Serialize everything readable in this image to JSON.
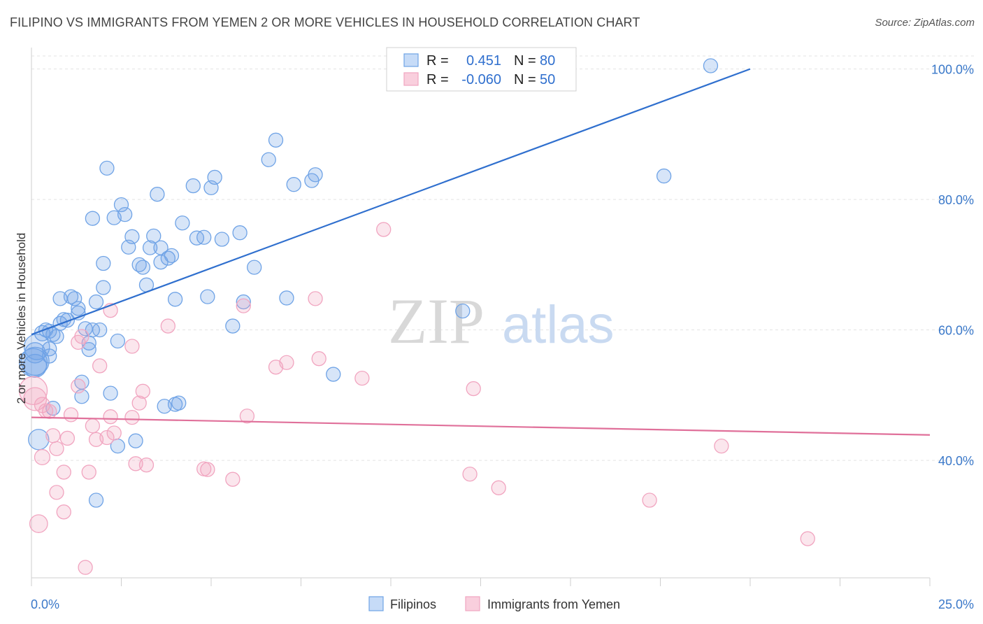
{
  "title": "FILIPINO VS IMMIGRANTS FROM YEMEN 2 OR MORE VEHICLES IN HOUSEHOLD CORRELATION CHART",
  "source": "Source: ZipAtlas.com",
  "watermark": {
    "zip": "ZIP",
    "atlas": "atlas"
  },
  "chart_data": {
    "type": "scatter",
    "ylabel": "2 or more Vehicles in Household",
    "xlim": [
      0,
      25
    ],
    "ylim": [
      22,
      102
    ],
    "x_tick_labels": [
      "0.0%",
      "25.0%"
    ],
    "y_ticks": [
      40,
      60,
      80,
      100
    ],
    "y_tick_labels": [
      "40.0%",
      "60.0%",
      "80.0%",
      "100.0%"
    ],
    "grid": true,
    "legend_position": "top-center",
    "stats": [
      {
        "r_label": "R =",
        "r": "0.451",
        "n_label": "N =",
        "n": "80"
      },
      {
        "r_label": "R =",
        "r": "-0.060",
        "n_label": "N =",
        "n": "50"
      }
    ],
    "series": [
      {
        "name": "Filipinos",
        "color": "#6fa3e6",
        "line_color": "#2f6fce",
        "trend": {
          "x": [
            0,
            20
          ],
          "y": [
            59.3,
            100
          ]
        },
        "points": [
          [
            0.1,
            55.2
          ],
          [
            0.1,
            54.5
          ],
          [
            0.1,
            56.5
          ],
          [
            0.2,
            43.2
          ],
          [
            0.3,
            59.5
          ],
          [
            0.4,
            60
          ],
          [
            0.5,
            59.8
          ],
          [
            0.5,
            57.1
          ],
          [
            0.5,
            56
          ],
          [
            0.6,
            48
          ],
          [
            0.6,
            59.3
          ],
          [
            0.7,
            59
          ],
          [
            0.8,
            64.8
          ],
          [
            0.8,
            61
          ],
          [
            0.9,
            61.6
          ],
          [
            1.0,
            61.5
          ],
          [
            1.1,
            65.1
          ],
          [
            1.2,
            64.8
          ],
          [
            1.3,
            63.3
          ],
          [
            1.3,
            62.6
          ],
          [
            1.4,
            52
          ],
          [
            1.4,
            49.8
          ],
          [
            1.5,
            60.2
          ],
          [
            1.6,
            57
          ],
          [
            1.6,
            58
          ],
          [
            1.7,
            60
          ],
          [
            1.7,
            77.1
          ],
          [
            1.8,
            64.3
          ],
          [
            1.9,
            60
          ],
          [
            2.0,
            70.2
          ],
          [
            2.0,
            66.5
          ],
          [
            2.1,
            84.8
          ],
          [
            2.2,
            50.3
          ],
          [
            2.3,
            77.2
          ],
          [
            2.4,
            42.2
          ],
          [
            2.4,
            58.3
          ],
          [
            2.5,
            79.2
          ],
          [
            2.6,
            77.7
          ],
          [
            2.7,
            72.7
          ],
          [
            2.8,
            74.3
          ],
          [
            2.9,
            43
          ],
          [
            3.0,
            70
          ],
          [
            3.1,
            69.6
          ],
          [
            3.2,
            66.9
          ],
          [
            3.3,
            72.6
          ],
          [
            3.4,
            74.4
          ],
          [
            3.5,
            80.8
          ],
          [
            3.6,
            72.6
          ],
          [
            3.6,
            70.4
          ],
          [
            3.7,
            48.3
          ],
          [
            3.8,
            71
          ],
          [
            3.9,
            71.4
          ],
          [
            4.0,
            48.6
          ],
          [
            4.0,
            64.7
          ],
          [
            4.1,
            48.8
          ],
          [
            4.2,
            76.4
          ],
          [
            4.5,
            82.1
          ],
          [
            4.6,
            74.1
          ],
          [
            4.8,
            74.2
          ],
          [
            4.9,
            65.1
          ],
          [
            5.0,
            81.8
          ],
          [
            5.1,
            83.4
          ],
          [
            5.3,
            73.9
          ],
          [
            5.6,
            60.6
          ],
          [
            5.8,
            74.9
          ],
          [
            5.9,
            64.3
          ],
          [
            6.2,
            69.6
          ],
          [
            6.6,
            86.1
          ],
          [
            6.8,
            89.1
          ],
          [
            7.1,
            64.9
          ],
          [
            7.3,
            82.3
          ],
          [
            7.8,
            82.9
          ],
          [
            7.9,
            83.8
          ],
          [
            8.4,
            53.2
          ],
          [
            12.0,
            62.9
          ],
          [
            17.6,
            83.6
          ],
          [
            18.9,
            100.5
          ],
          [
            1.8,
            33.9
          ],
          [
            0.05,
            55
          ],
          [
            0.15,
            57.4
          ]
        ],
        "sizes": [
          22,
          18,
          16,
          16,
          12,
          11,
          11,
          11,
          11,
          11,
          11,
          11,
          11,
          11,
          11,
          11,
          11,
          11,
          11,
          11,
          11,
          11,
          11,
          11,
          11,
          11,
          11,
          11,
          11,
          11,
          11,
          11,
          11,
          11,
          11,
          11,
          11,
          11,
          11,
          11,
          11,
          11,
          11,
          11,
          11,
          11,
          11,
          11,
          11,
          11,
          11,
          11,
          11,
          11,
          11,
          11,
          11,
          11,
          11,
          11,
          11,
          11,
          11,
          11,
          11,
          11,
          11,
          11,
          11,
          11,
          11,
          11,
          11,
          11,
          11,
          11,
          11,
          11,
          22,
          20
        ]
      },
      {
        "name": "Immigrants from Yemen",
        "color": "#f1a5c0",
        "line_color": "#e0709a",
        "trend": {
          "x": [
            0,
            25
          ],
          "y": [
            46.6,
            43.9
          ]
        },
        "points": [
          [
            0.05,
            50.7
          ],
          [
            0.2,
            30.3
          ],
          [
            0.3,
            48.5
          ],
          [
            0.3,
            40.5
          ],
          [
            0.4,
            47.6
          ],
          [
            0.5,
            47.5
          ],
          [
            0.6,
            43.8
          ],
          [
            0.7,
            35.1
          ],
          [
            0.7,
            41.8
          ],
          [
            0.9,
            32.1
          ],
          [
            0.9,
            38.2
          ],
          [
            1.0,
            43.4
          ],
          [
            1.1,
            47
          ],
          [
            1.3,
            58.1
          ],
          [
            1.3,
            51.4
          ],
          [
            1.4,
            59
          ],
          [
            1.5,
            23.6
          ],
          [
            1.6,
            38.2
          ],
          [
            1.7,
            45.3
          ],
          [
            1.8,
            43.2
          ],
          [
            1.9,
            54.5
          ],
          [
            2.1,
            43.5
          ],
          [
            2.2,
            46.7
          ],
          [
            2.2,
            63
          ],
          [
            2.3,
            44.2
          ],
          [
            2.8,
            46.6
          ],
          [
            2.8,
            57.5
          ],
          [
            2.9,
            39.5
          ],
          [
            3.0,
            48.8
          ],
          [
            3.1,
            50.6
          ],
          [
            3.2,
            39.3
          ],
          [
            3.8,
            60.6
          ],
          [
            4.8,
            38.7
          ],
          [
            4.9,
            38.6
          ],
          [
            5.6,
            37.1
          ],
          [
            5.9,
            63.7
          ],
          [
            6.0,
            46.8
          ],
          [
            6.8,
            54.3
          ],
          [
            7.1,
            55
          ],
          [
            7.9,
            64.8
          ],
          [
            8.0,
            55.6
          ],
          [
            9.2,
            52.6
          ],
          [
            9.8,
            75.4
          ],
          [
            12.2,
            37.9
          ],
          [
            12.3,
            51
          ],
          [
            13.0,
            35.8
          ],
          [
            17.2,
            33.9
          ],
          [
            19.2,
            42.2
          ],
          [
            21.6,
            28
          ],
          [
            0.1,
            49.4
          ]
        ],
        "sizes": [
          22,
          14,
          12,
          12,
          11,
          11,
          11,
          11,
          11,
          11,
          11,
          11,
          11,
          11,
          11,
          11,
          11,
          11,
          11,
          11,
          11,
          11,
          11,
          11,
          11,
          11,
          11,
          11,
          11,
          11,
          11,
          11,
          11,
          11,
          11,
          11,
          11,
          11,
          11,
          11,
          11,
          11,
          11,
          11,
          11,
          11,
          11,
          11,
          11,
          18
        ]
      }
    ]
  }
}
